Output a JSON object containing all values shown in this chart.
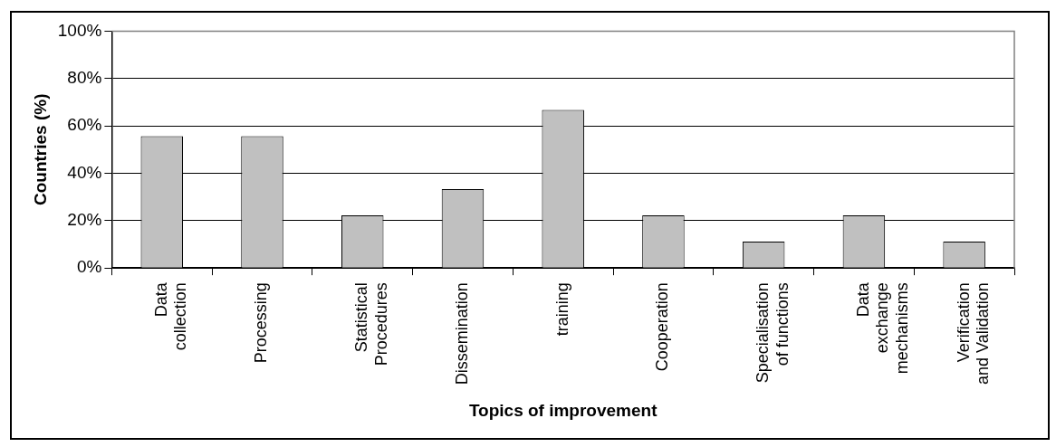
{
  "chart_data": {
    "type": "bar",
    "xlabel": "Topics of improvement",
    "ylabel": "Countries (%)",
    "categories": [
      "Data\ncollection",
      "Processing",
      "Statistical\nProcedures",
      "Dissemination",
      "training",
      "Cooperation",
      "Specialisation\nof functions",
      "Data\nexchange\nmechanisms",
      "Verification\nand Validation"
    ],
    "values": [
      55.6,
      55.6,
      22.2,
      33.3,
      66.7,
      22.2,
      11.1,
      22.2,
      11.1
    ],
    "color": "#c0c0c0",
    "ylim": [
      0,
      100
    ],
    "yticks": [
      {
        "value": 0,
        "label": "0%"
      },
      {
        "value": 20,
        "label": "20%"
      },
      {
        "value": 40,
        "label": "40%"
      },
      {
        "value": 60,
        "label": "60%"
      },
      {
        "value": 80,
        "label": "80%"
      },
      {
        "value": 100,
        "label": "100%"
      }
    ],
    "grid": "y",
    "legend": false
  }
}
